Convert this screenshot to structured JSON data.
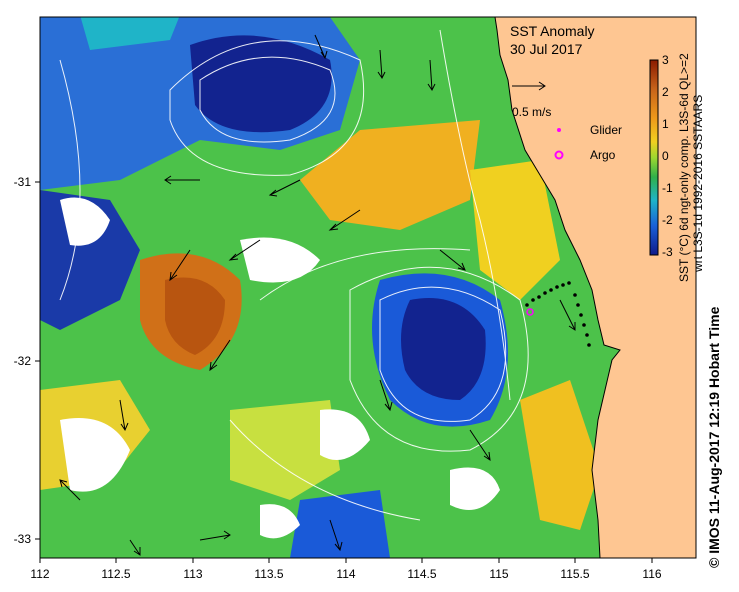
{
  "title": {
    "line1": "SST Anomaly",
    "line2": "30 Jul 2017"
  },
  "velocity_scale": {
    "label": "0.5 m/s"
  },
  "legend": [
    {
      "label": "Glider",
      "color": "#ff00ff",
      "marker": "dot"
    },
    {
      "label": "Argo",
      "color": "#ff00ff",
      "marker": "ring"
    }
  ],
  "colorbar": {
    "ticks": [
      "3",
      "2",
      "1",
      "0",
      "-1",
      "-2",
      "-3"
    ],
    "label_line1": "SST (°C) 6d ngt-only comp. L3S-6d QL>=2",
    "label_line2": "wrt L3S-1d 1992-2016 SSTAARS",
    "colors": [
      "#8b1a00",
      "#c8641a",
      "#ee9a1a",
      "#f0d020",
      "#9ed830",
      "#30b04a",
      "#1fb4c8",
      "#1a60d8",
      "#101a8a"
    ]
  },
  "x_axis": {
    "ticks": [
      "112",
      "112.5",
      "113",
      "113.5",
      "114",
      "114.5",
      "115",
      "115.5",
      "116"
    ]
  },
  "y_axis": {
    "ticks": [
      "-31",
      "-32",
      "-33"
    ]
  },
  "credit": "© IMOS 11-Aug-2017 12:19 Hobart Time",
  "colors": {
    "land": "#fec692",
    "coast": "#000000"
  }
}
